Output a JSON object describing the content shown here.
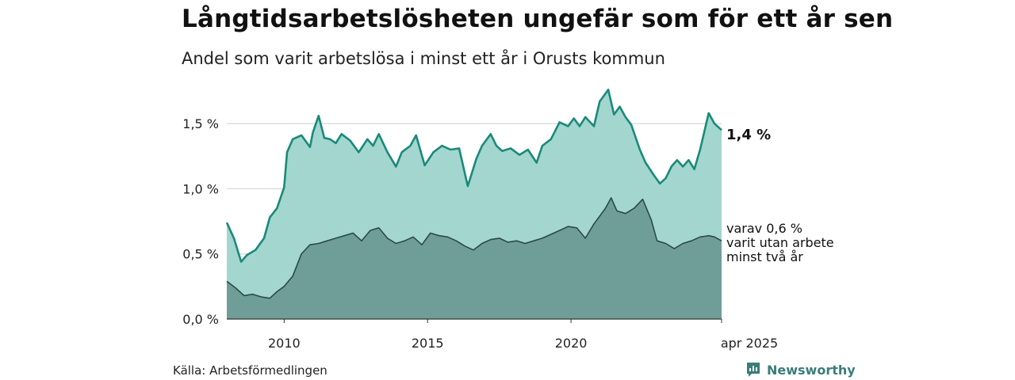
{
  "title": "Långtidsarbetslösheten ungefär som för ett år sen",
  "subtitle": "Andel som varit arbetslösa i minst ett år i Orusts kommun",
  "source": "Källa: Arbetsförmedlingen",
  "brand": {
    "name": "Newsworthy",
    "icon": "newsworthy-logo-icon"
  },
  "labels": {
    "main_value": "1,4 %",
    "sub_line1": "varav 0,6 %",
    "sub_line2": "varit utan arbete",
    "sub_line3": "minst två år"
  },
  "colors": {
    "line_main": "#1a8a7a",
    "fill_main": "#a3d6cf",
    "line_sub": "#2c4a45",
    "fill_sub": "#6f9e98",
    "grid": "#dddddd",
    "brand": "#3a7d7a"
  },
  "chart_data": {
    "type": "area",
    "ylim": [
      0,
      1.78
    ],
    "yticks": [
      {
        "value": 0.0,
        "label": "0,0 %"
      },
      {
        "value": 0.5,
        "label": "0,5 %"
      },
      {
        "value": 1.0,
        "label": "1,0 %"
      },
      {
        "value": 1.5,
        "label": "1,5 %"
      }
    ],
    "xlim": [
      2008.0,
      2025.25
    ],
    "xticks": [
      {
        "value": 2010,
        "label": "2010"
      },
      {
        "value": 2015,
        "label": "2015"
      },
      {
        "value": 2020,
        "label": "2020"
      },
      {
        "value": 2025.25,
        "label": "apr 2025"
      }
    ],
    "series": [
      {
        "name": "1,4 %",
        "x": [
          2008.0,
          2008.25,
          2008.5,
          2008.7,
          2009.0,
          2009.3,
          2009.5,
          2009.75,
          2010.0,
          2010.1,
          2010.3,
          2010.6,
          2010.9,
          2011.0,
          2011.2,
          2011.4,
          2011.6,
          2011.8,
          2012.0,
          2012.3,
          2012.6,
          2012.9,
          2013.1,
          2013.3,
          2013.6,
          2013.9,
          2014.1,
          2014.4,
          2014.6,
          2014.9,
          2015.2,
          2015.5,
          2015.8,
          2016.1,
          2016.4,
          2016.7,
          2016.9,
          2017.2,
          2017.4,
          2017.6,
          2017.9,
          2018.2,
          2018.5,
          2018.8,
          2019.0,
          2019.3,
          2019.6,
          2019.9,
          2020.1,
          2020.3,
          2020.5,
          2020.8,
          2021.0,
          2021.3,
          2021.5,
          2021.7,
          2021.9,
          2022.1,
          2022.4,
          2022.6,
          2022.9,
          2023.1,
          2023.3,
          2023.5,
          2023.7,
          2023.9,
          2024.1,
          2024.3,
          2024.5,
          2024.8,
          2025.0,
          2025.25
        ],
        "values": [
          0.74,
          0.62,
          0.44,
          0.49,
          0.53,
          0.62,
          0.78,
          0.85,
          1.01,
          1.28,
          1.38,
          1.41,
          1.32,
          1.43,
          1.56,
          1.39,
          1.38,
          1.35,
          1.42,
          1.37,
          1.28,
          1.38,
          1.33,
          1.42,
          1.28,
          1.17,
          1.28,
          1.33,
          1.41,
          1.18,
          1.28,
          1.33,
          1.3,
          1.31,
          1.02,
          1.23,
          1.33,
          1.42,
          1.33,
          1.29,
          1.31,
          1.26,
          1.3,
          1.2,
          1.33,
          1.38,
          1.51,
          1.48,
          1.54,
          1.48,
          1.55,
          1.48,
          1.67,
          1.76,
          1.57,
          1.63,
          1.55,
          1.49,
          1.3,
          1.2,
          1.1,
          1.04,
          1.08,
          1.17,
          1.22,
          1.17,
          1.22,
          1.15,
          1.3,
          1.58,
          1.5,
          1.45
        ]
      },
      {
        "name": "varav 0,6 %",
        "x": [
          2008.0,
          2008.3,
          2008.6,
          2008.9,
          2009.2,
          2009.5,
          2009.75,
          2010.0,
          2010.3,
          2010.6,
          2010.9,
          2011.2,
          2011.5,
          2011.8,
          2012.1,
          2012.4,
          2012.7,
          2013.0,
          2013.3,
          2013.6,
          2013.9,
          2014.2,
          2014.5,
          2014.8,
          2015.1,
          2015.4,
          2015.7,
          2016.0,
          2016.3,
          2016.6,
          2016.9,
          2017.2,
          2017.5,
          2017.8,
          2018.1,
          2018.4,
          2018.7,
          2019.0,
          2019.3,
          2019.6,
          2019.9,
          2020.2,
          2020.5,
          2020.8,
          2021.0,
          2021.2,
          2021.4,
          2021.6,
          2021.9,
          2022.2,
          2022.5,
          2022.8,
          2023.0,
          2023.3,
          2023.6,
          2023.9,
          2024.2,
          2024.5,
          2024.8,
          2025.0,
          2025.25
        ],
        "values": [
          0.29,
          0.24,
          0.18,
          0.19,
          0.17,
          0.16,
          0.21,
          0.25,
          0.33,
          0.5,
          0.57,
          0.58,
          0.6,
          0.62,
          0.64,
          0.66,
          0.6,
          0.68,
          0.7,
          0.62,
          0.58,
          0.6,
          0.63,
          0.57,
          0.66,
          0.64,
          0.63,
          0.6,
          0.56,
          0.53,
          0.58,
          0.61,
          0.62,
          0.59,
          0.6,
          0.58,
          0.6,
          0.62,
          0.65,
          0.68,
          0.71,
          0.7,
          0.62,
          0.73,
          0.79,
          0.85,
          0.93,
          0.83,
          0.81,
          0.85,
          0.92,
          0.76,
          0.6,
          0.58,
          0.54,
          0.58,
          0.6,
          0.63,
          0.64,
          0.63,
          0.6
        ]
      }
    ]
  }
}
